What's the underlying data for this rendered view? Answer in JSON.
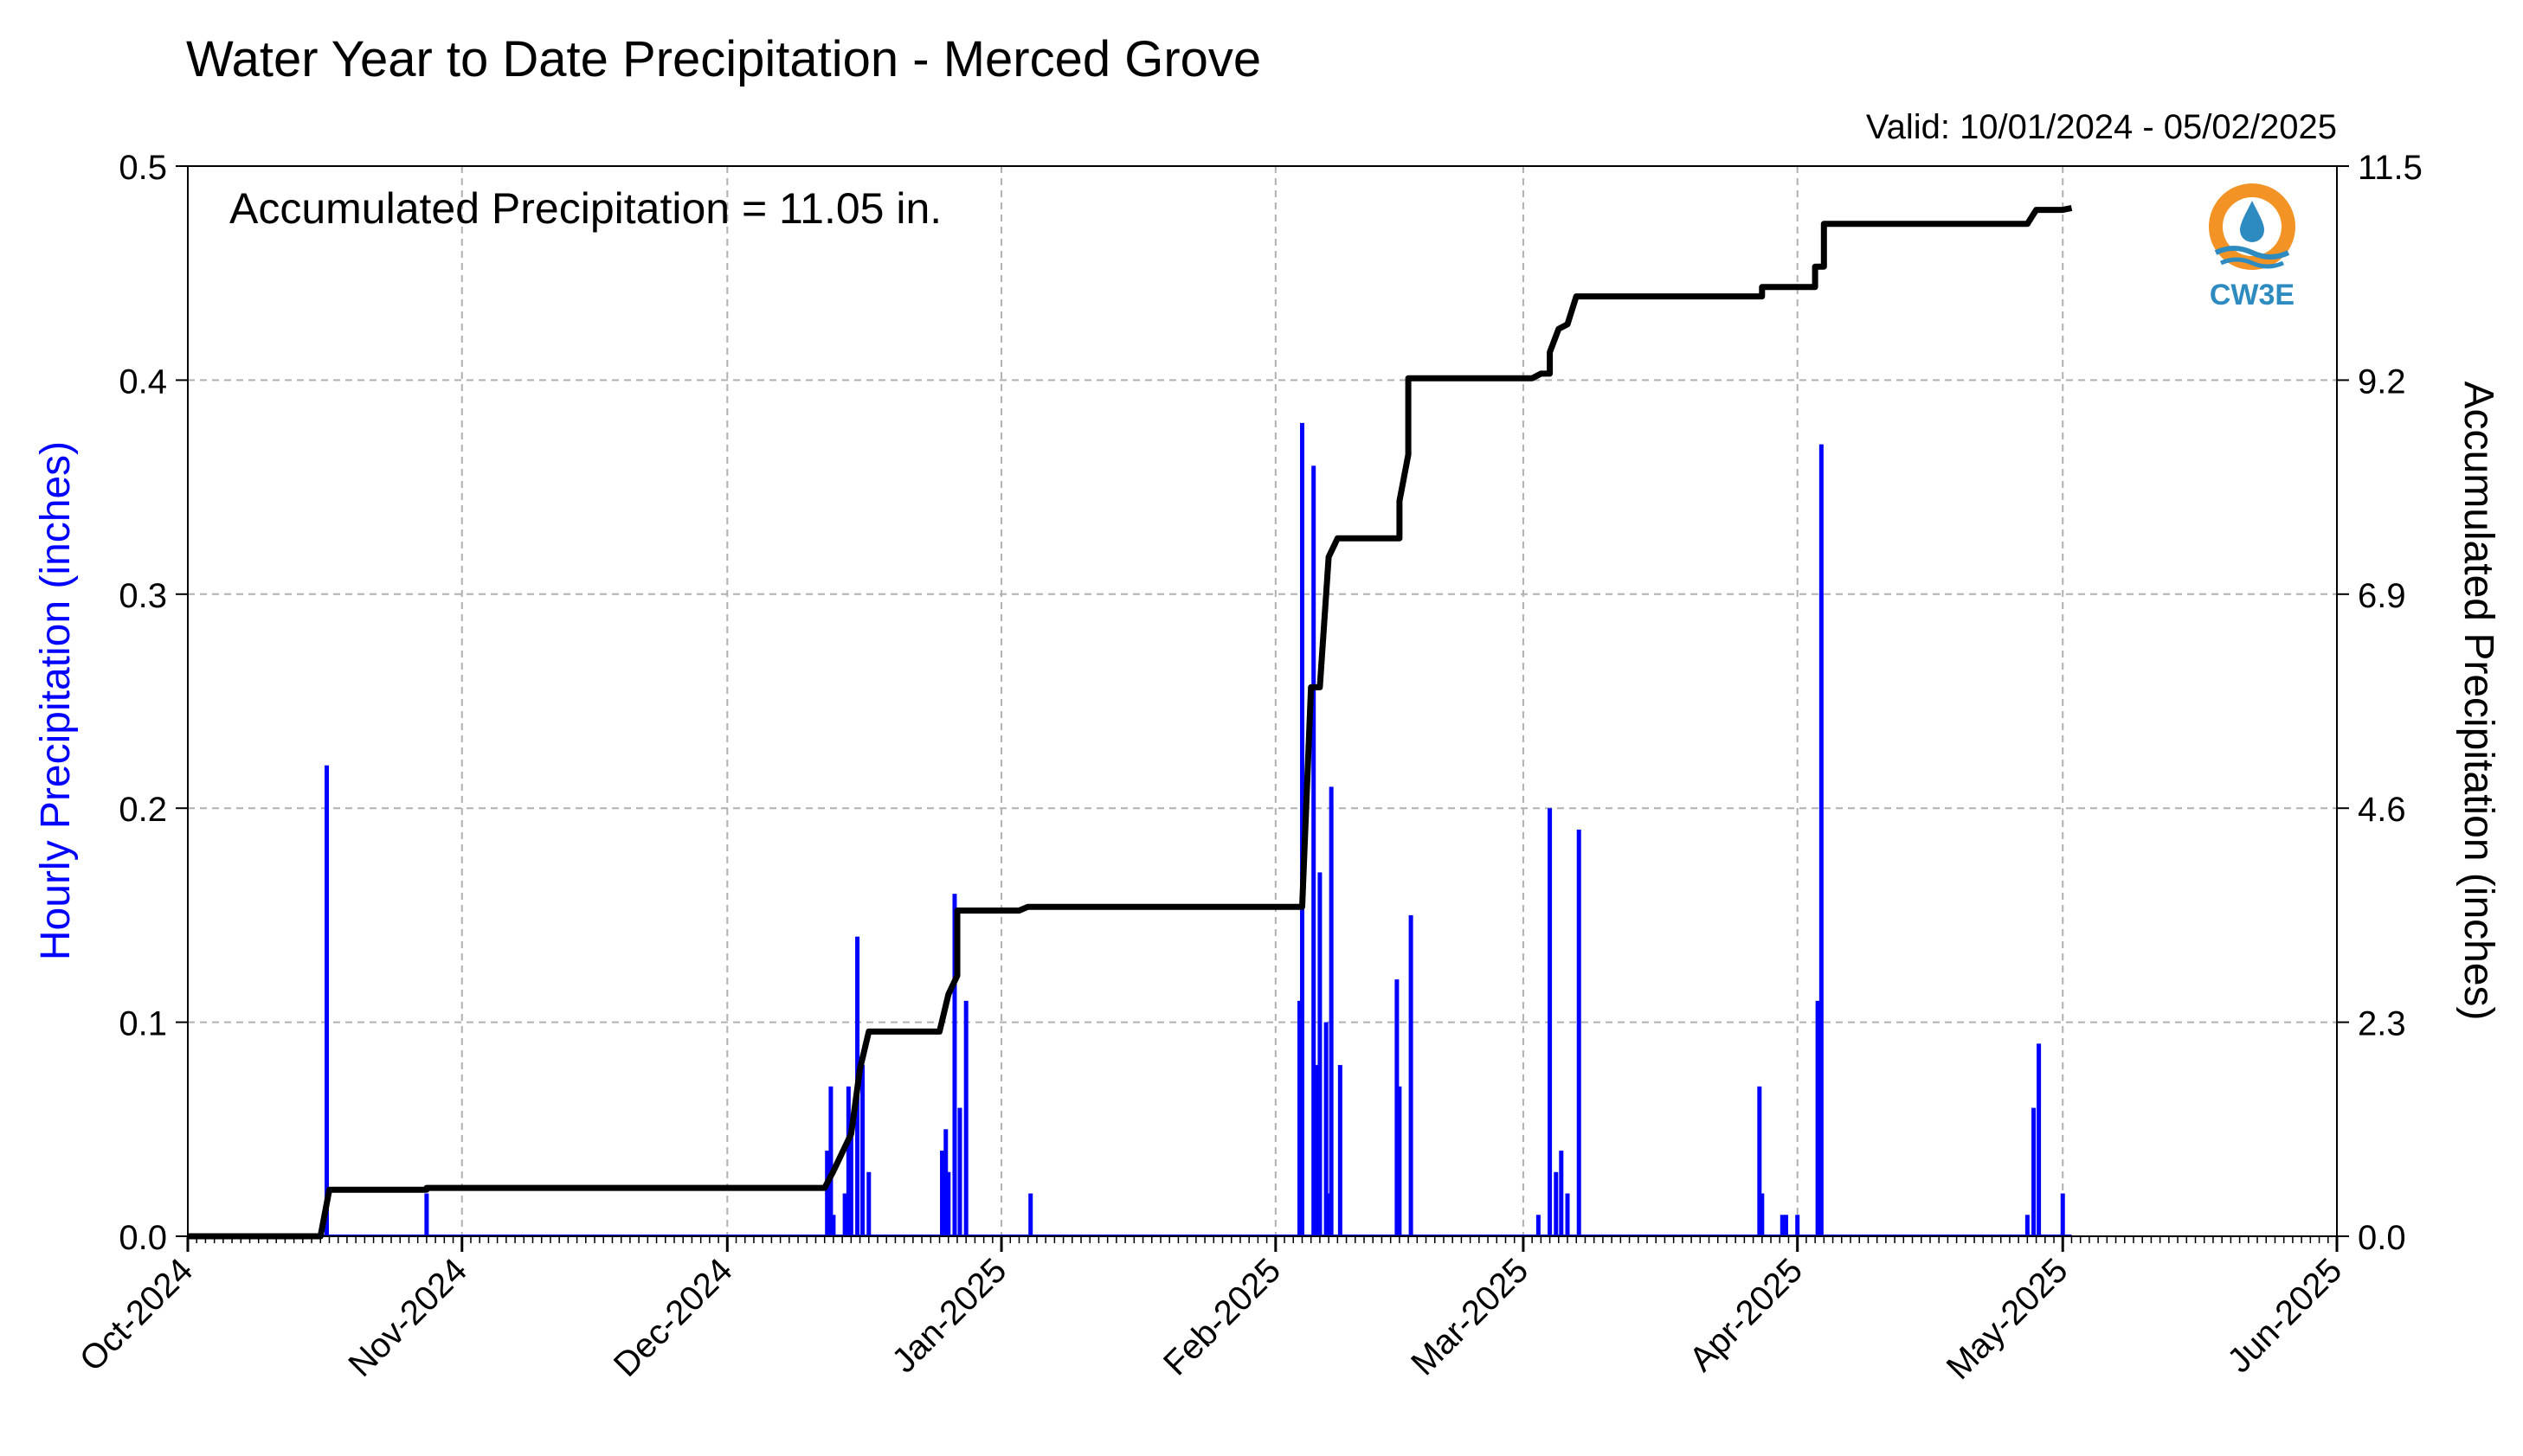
{
  "chart_data": {
    "type": "bar+line",
    "title": "Water Year to Date Precipitation - Merced Grove",
    "valid_text": "Valid: 10/01/2024 - 05/02/2025",
    "annotation": "Accumulated Precipitation = 11.05 in.",
    "logo_text": "CW3E",
    "ylabel_left": "Hourly Precipitation (inches)",
    "ylabel_right": "Accumulated Precipitation (inches)",
    "colors": {
      "bars": "#0000ff",
      "line": "#000000",
      "grid": "#b0b0b0",
      "ylabel_left": "#0000ff",
      "logo_orange": "#f39325",
      "logo_blue": "#2e8bc0"
    },
    "grid": true,
    "x_axis": {
      "type": "date",
      "range": [
        "2024-10-01",
        "2025-06-01"
      ],
      "tick_labels": [
        "Oct-2024",
        "Nov-2024",
        "Dec-2024",
        "Jan-2025",
        "Feb-2025",
        "Mar-2025",
        "Apr-2025",
        "May-2025",
        "Jun-2025"
      ],
      "tick_dates": [
        "2024-10-01",
        "2024-11-01",
        "2024-12-01",
        "2025-01-01",
        "2025-02-01",
        "2025-03-01",
        "2025-04-01",
        "2025-05-01",
        "2025-06-01"
      ]
    },
    "y_left": {
      "range": [
        0,
        0.5
      ],
      "tick_labels": [
        "0.0",
        "0.1",
        "0.2",
        "0.3",
        "0.4",
        "0.5"
      ],
      "ticks": [
        0,
        0.1,
        0.2,
        0.3,
        0.4,
        0.5
      ]
    },
    "y_right": {
      "range": [
        0,
        11.5
      ],
      "tick_labels": [
        "0.0",
        "2.3",
        "4.6",
        "6.9",
        "9.2",
        "11.5"
      ],
      "ticks": [
        0,
        2.3,
        4.6,
        6.9,
        9.2,
        11.5
      ]
    },
    "hourly_series": {
      "name": "",
      "points": [
        [
          "2024-10-17",
          0.22
        ],
        [
          "2024-10-28",
          0.02
        ],
        [
          "2024-12-12",
          0.04
        ],
        [
          "2024-12-13",
          0.07
        ],
        [
          "2024-12-13",
          0.01
        ],
        [
          "2024-12-14",
          0.02
        ],
        [
          "2024-12-15",
          0.07
        ],
        [
          "2024-12-15",
          0.05
        ],
        [
          "2024-12-16",
          0.08
        ],
        [
          "2024-12-16",
          0.14
        ],
        [
          "2024-12-17",
          0.03
        ],
        [
          "2024-12-25",
          0.04
        ],
        [
          "2024-12-26",
          0.05
        ],
        [
          "2024-12-26",
          0.03
        ],
        [
          "2024-12-27",
          0.06
        ],
        [
          "2024-12-27",
          0.16
        ],
        [
          "2024-12-28",
          0.11
        ],
        [
          "2025-01-04",
          0.02
        ],
        [
          "2025-02-04",
          0.11
        ],
        [
          "2025-02-04",
          0.38
        ],
        [
          "2025-02-05",
          0.36
        ],
        [
          "2025-02-06",
          0.08
        ],
        [
          "2025-02-06",
          0.17
        ],
        [
          "2025-02-07",
          0.21
        ],
        [
          "2025-02-07",
          0.1
        ],
        [
          "2025-02-07",
          0.02
        ],
        [
          "2025-02-08",
          0.08
        ],
        [
          "2025-02-15",
          0.12
        ],
        [
          "2025-02-15",
          0.07
        ],
        [
          "2025-02-16",
          0.15
        ],
        [
          "2025-03-03",
          0.01
        ],
        [
          "2025-03-04",
          0.2
        ],
        [
          "2025-03-05",
          0.04
        ],
        [
          "2025-03-05",
          0.03
        ],
        [
          "2025-03-06",
          0.02
        ],
        [
          "2025-03-07",
          0.19
        ],
        [
          "2025-03-28",
          0.07
        ],
        [
          "2025-03-28",
          0.02
        ],
        [
          "2025-03-30",
          0.01
        ],
        [
          "2025-03-31",
          0.01
        ],
        [
          "2025-04-01",
          0.01
        ],
        [
          "2025-04-03",
          0.11
        ],
        [
          "2025-04-04",
          0.37
        ],
        [
          "2025-04-27",
          0.01
        ],
        [
          "2025-04-28",
          0.09
        ],
        [
          "2025-04-28",
          0.06
        ],
        [
          "2025-05-01",
          0.02
        ]
      ]
    },
    "accumulated_series": {
      "name": "",
      "points": [
        [
          "2024-10-01",
          0.0
        ],
        [
          "2024-10-16",
          0.0
        ],
        [
          "2024-10-17",
          0.5
        ],
        [
          "2024-10-28",
          0.5
        ],
        [
          "2024-10-28",
          0.52
        ],
        [
          "2024-12-12",
          0.52
        ],
        [
          "2024-12-13",
          0.7
        ],
        [
          "2024-12-14",
          0.9
        ],
        [
          "2024-12-15",
          1.1
        ],
        [
          "2024-12-16",
          1.8
        ],
        [
          "2024-12-17",
          2.2
        ],
        [
          "2024-12-25",
          2.2
        ],
        [
          "2024-12-26",
          2.6
        ],
        [
          "2024-12-27",
          2.8
        ],
        [
          "2024-12-27",
          3.5
        ],
        [
          "2025-01-03",
          3.5
        ],
        [
          "2025-01-04",
          3.54
        ],
        [
          "2025-02-04",
          3.54
        ],
        [
          "2025-02-05",
          5.9
        ],
        [
          "2025-02-06",
          5.9
        ],
        [
          "2025-02-07",
          7.3
        ],
        [
          "2025-02-08",
          7.5
        ],
        [
          "2025-02-15",
          7.5
        ],
        [
          "2025-02-15",
          7.9
        ],
        [
          "2025-02-16",
          8.4
        ],
        [
          "2025-02-16",
          9.22
        ],
        [
          "2025-03-02",
          9.22
        ],
        [
          "2025-03-03",
          9.27
        ],
        [
          "2025-03-04",
          9.27
        ],
        [
          "2025-03-04",
          9.5
        ],
        [
          "2025-03-05",
          9.75
        ],
        [
          "2025-03-06",
          9.8
        ],
        [
          "2025-03-07",
          10.1
        ],
        [
          "2025-03-28",
          10.1
        ],
        [
          "2025-03-28",
          10.2
        ],
        [
          "2025-04-03",
          10.2
        ],
        [
          "2025-04-03",
          10.42
        ],
        [
          "2025-04-04",
          10.42
        ],
        [
          "2025-04-04",
          10.88
        ],
        [
          "2025-04-27",
          10.88
        ],
        [
          "2025-04-28",
          11.03
        ],
        [
          "2025-05-01",
          11.03
        ],
        [
          "2025-05-02",
          11.05
        ]
      ]
    }
  }
}
